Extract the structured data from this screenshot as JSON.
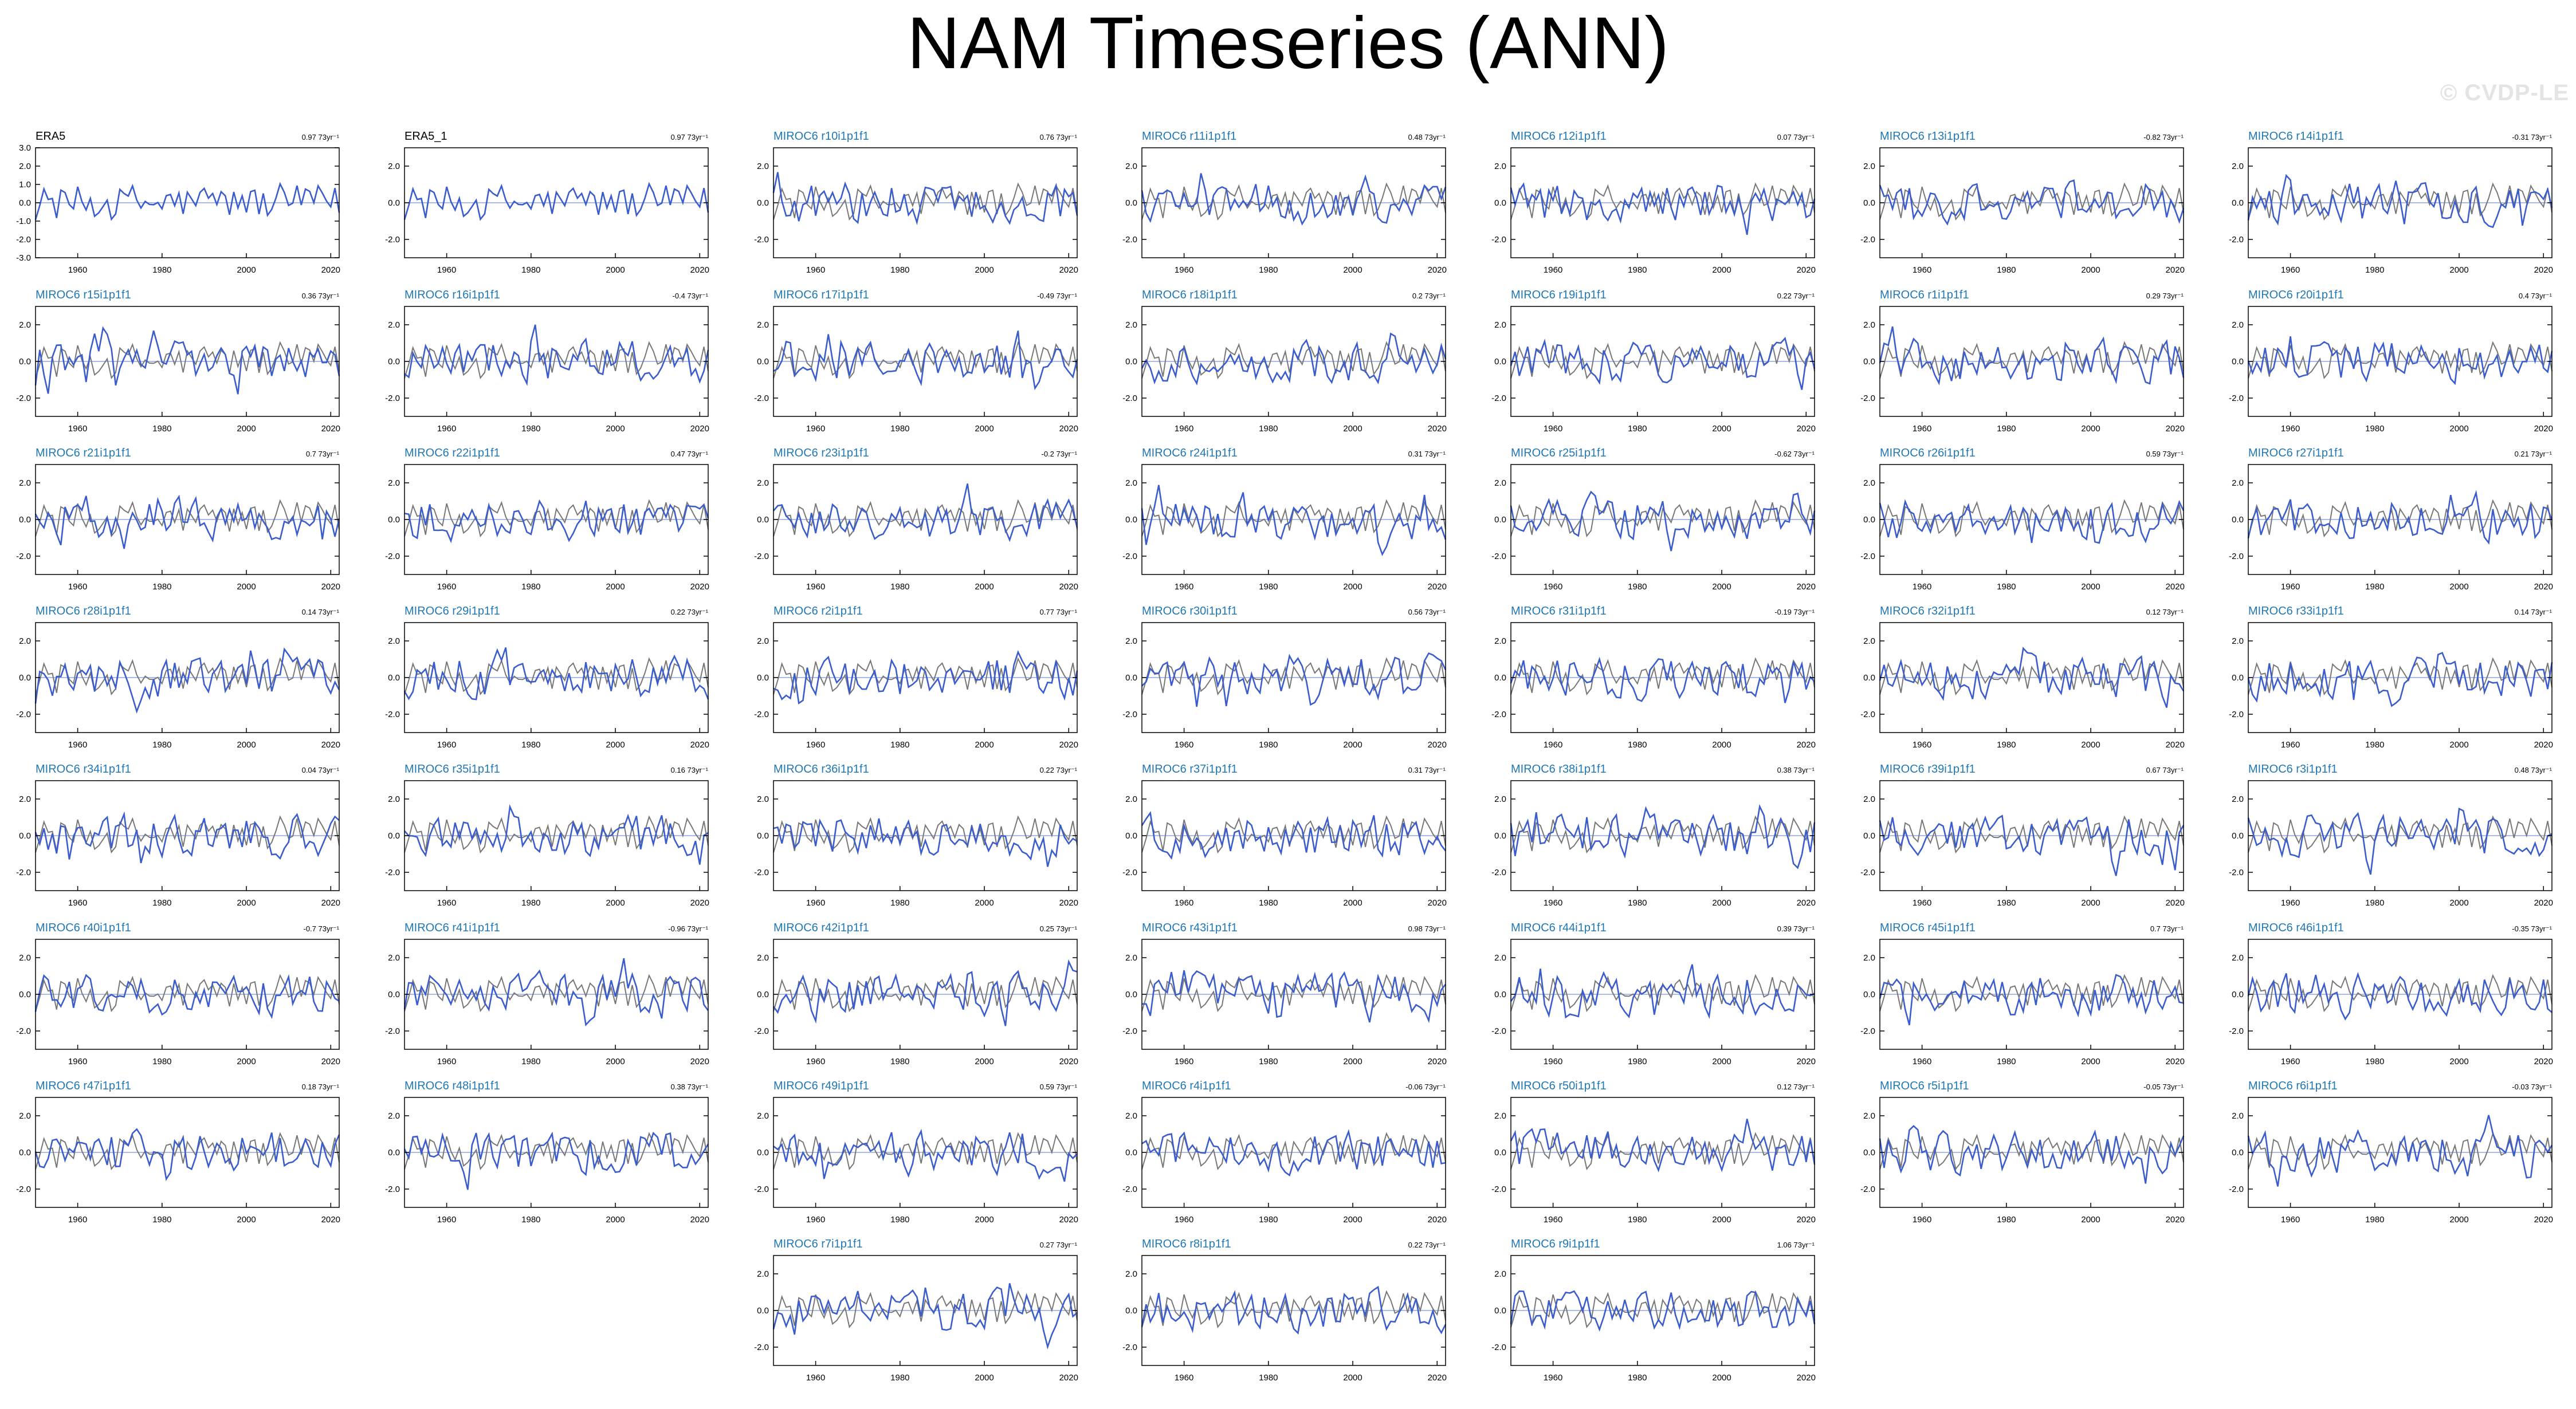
{
  "title": "NAM Timeseries (ANN)",
  "watermark": "© CVDP-LE",
  "colors": {
    "observed_line": "#777777",
    "member_line": "#3b5ccc",
    "zero_line": "#8da4e6",
    "axis": "#000000",
    "member_label": "#1f77b4",
    "obs_label": "#000000"
  },
  "chart_data": {
    "type": "line",
    "x_range": [
      1950,
      2022
    ],
    "x_ticks": [
      "1960",
      "1980",
      "2000",
      "2020"
    ],
    "panels": [
      {
        "label": "ERA5",
        "trend": "0.97",
        "is_obs": true,
        "y_ticks": [
          "3.0",
          "2.0",
          "1.0",
          "0.0",
          "-1.0",
          "-2.0",
          "-3.0"
        ],
        "ylim": [
          -3,
          3
        ]
      },
      {
        "label": "ERA5_1",
        "trend": "0.97",
        "is_obs": true,
        "y_ticks": [
          "2.0",
          "0.0",
          "-2.0"
        ],
        "ylim": [
          -3,
          3
        ]
      },
      {
        "label": "MIROC6 r10i1p1f1",
        "trend": "0.76",
        "y_ticks": [
          "2.0",
          "0.0",
          "-2.0"
        ],
        "ylim": [
          -3,
          3
        ]
      },
      {
        "label": "MIROC6 r11i1p1f1",
        "trend": "0.48",
        "y_ticks": [
          "2.0",
          "0.0",
          "-2.0"
        ],
        "ylim": [
          -3,
          3
        ]
      },
      {
        "label": "MIROC6 r12i1p1f1",
        "trend": "0.07",
        "y_ticks": [
          "2.0",
          "0.0",
          "-2.0"
        ],
        "ylim": [
          -3,
          3
        ]
      },
      {
        "label": "MIROC6 r13i1p1f1",
        "trend": "-0.82",
        "y_ticks": [
          "2.0",
          "0.0",
          "-2.0"
        ],
        "ylim": [
          -3,
          3
        ]
      },
      {
        "label": "MIROC6 r14i1p1f1",
        "trend": "-0.31",
        "y_ticks": [
          "2.0",
          "0.0",
          "-2.0"
        ],
        "ylim": [
          -3,
          3
        ]
      },
      {
        "label": "MIROC6 r15i1p1f1",
        "trend": "0.36",
        "y_ticks": [
          "2.0",
          "0.0",
          "-2.0"
        ],
        "ylim": [
          -3,
          3
        ]
      },
      {
        "label": "MIROC6 r16i1p1f1",
        "trend": "-0.4",
        "y_ticks": [
          "2.0",
          "0.0",
          "-2.0"
        ],
        "ylim": [
          -3,
          3
        ]
      },
      {
        "label": "MIROC6 r17i1p1f1",
        "trend": "-0.49",
        "y_ticks": [
          "2.0",
          "0.0",
          "-2.0"
        ],
        "ylim": [
          -3,
          3
        ]
      },
      {
        "label": "MIROC6 r18i1p1f1",
        "trend": "0.2",
        "y_ticks": [
          "2.0",
          "0.0",
          "-2.0"
        ],
        "ylim": [
          -3,
          3
        ]
      },
      {
        "label": "MIROC6 r19i1p1f1",
        "trend": "0.22",
        "y_ticks": [
          "2.0",
          "0.0",
          "-2.0"
        ],
        "ylim": [
          -3,
          3
        ]
      },
      {
        "label": "MIROC6 r1i1p1f1",
        "trend": "0.29",
        "y_ticks": [
          "2.0",
          "0.0",
          "-2.0"
        ],
        "ylim": [
          -3,
          3
        ]
      },
      {
        "label": "MIROC6 r20i1p1f1",
        "trend": "0.4",
        "y_ticks": [
          "2.0",
          "0.0",
          "-2.0"
        ],
        "ylim": [
          -3,
          3
        ]
      },
      {
        "label": "MIROC6 r21i1p1f1",
        "trend": "0.7",
        "y_ticks": [
          "2.0",
          "0.0",
          "-2.0"
        ],
        "ylim": [
          -3,
          3
        ]
      },
      {
        "label": "MIROC6 r22i1p1f1",
        "trend": "0.47",
        "y_ticks": [
          "2.0",
          "0.0",
          "-2.0"
        ],
        "ylim": [
          -3,
          3
        ]
      },
      {
        "label": "MIROC6 r23i1p1f1",
        "trend": "-0.2",
        "y_ticks": [
          "2.0",
          "0.0",
          "-2.0"
        ],
        "ylim": [
          -3,
          3
        ]
      },
      {
        "label": "MIROC6 r24i1p1f1",
        "trend": "0.31",
        "y_ticks": [
          "2.0",
          "0.0",
          "-2.0"
        ],
        "ylim": [
          -3,
          3
        ]
      },
      {
        "label": "MIROC6 r25i1p1f1",
        "trend": "-0.62",
        "y_ticks": [
          "2.0",
          "0.0",
          "-2.0"
        ],
        "ylim": [
          -3,
          3
        ]
      },
      {
        "label": "MIROC6 r26i1p1f1",
        "trend": "0.59",
        "y_ticks": [
          "2.0",
          "0.0",
          "-2.0"
        ],
        "ylim": [
          -3,
          3
        ]
      },
      {
        "label": "MIROC6 r27i1p1f1",
        "trend": "0.21",
        "y_ticks": [
          "2.0",
          "0.0",
          "-2.0"
        ],
        "ylim": [
          -3,
          3
        ]
      },
      {
        "label": "MIROC6 r28i1p1f1",
        "trend": "0.14",
        "y_ticks": [
          "2.0",
          "0.0",
          "-2.0"
        ],
        "ylim": [
          -3,
          3
        ]
      },
      {
        "label": "MIROC6 r29i1p1f1",
        "trend": "0.22",
        "y_ticks": [
          "2.0",
          "0.0",
          "-2.0"
        ],
        "ylim": [
          -3,
          3
        ]
      },
      {
        "label": "MIROC6 r2i1p1f1",
        "trend": "0.77",
        "y_ticks": [
          "2.0",
          "0.0",
          "-2.0"
        ],
        "ylim": [
          -3,
          3
        ]
      },
      {
        "label": "MIROC6 r30i1p1f1",
        "trend": "0.56",
        "y_ticks": [
          "2.0",
          "0.0",
          "-2.0"
        ],
        "ylim": [
          -3,
          3
        ]
      },
      {
        "label": "MIROC6 r31i1p1f1",
        "trend": "-0.19",
        "y_ticks": [
          "2.0",
          "0.0",
          "-2.0"
        ],
        "ylim": [
          -3,
          3
        ]
      },
      {
        "label": "MIROC6 r32i1p1f1",
        "trend": "0.12",
        "y_ticks": [
          "2.0",
          "0.0",
          "-2.0"
        ],
        "ylim": [
          -3,
          3
        ]
      },
      {
        "label": "MIROC6 r33i1p1f1",
        "trend": "0.14",
        "y_ticks": [
          "2.0",
          "0.0",
          "-2.0"
        ],
        "ylim": [
          -3,
          3
        ]
      },
      {
        "label": "MIROC6 r34i1p1f1",
        "trend": "0.04",
        "y_ticks": [
          "2.0",
          "0.0",
          "-2.0"
        ],
        "ylim": [
          -3,
          3
        ]
      },
      {
        "label": "MIROC6 r35i1p1f1",
        "trend": "0.16",
        "y_ticks": [
          "2.0",
          "0.0",
          "-2.0"
        ],
        "ylim": [
          -3,
          3
        ]
      },
      {
        "label": "MIROC6 r36i1p1f1",
        "trend": "0.22",
        "y_ticks": [
          "2.0",
          "0.0",
          "-2.0"
        ],
        "ylim": [
          -3,
          3
        ]
      },
      {
        "label": "MIROC6 r37i1p1f1",
        "trend": "0.31",
        "y_ticks": [
          "2.0",
          "0.0",
          "-2.0"
        ],
        "ylim": [
          -3,
          3
        ]
      },
      {
        "label": "MIROC6 r38i1p1f1",
        "trend": "0.38",
        "y_ticks": [
          "2.0",
          "0.0",
          "-2.0"
        ],
        "ylim": [
          -3,
          3
        ]
      },
      {
        "label": "MIROC6 r39i1p1f1",
        "trend": "0.67",
        "y_ticks": [
          "2.0",
          "0.0",
          "-2.0"
        ],
        "ylim": [
          -3,
          3
        ]
      },
      {
        "label": "MIROC6 r3i1p1f1",
        "trend": "0.48",
        "y_ticks": [
          "2.0",
          "0.0",
          "-2.0"
        ],
        "ylim": [
          -3,
          3
        ]
      },
      {
        "label": "MIROC6 r40i1p1f1",
        "trend": "-0.7",
        "y_ticks": [
          "2.0",
          "0.0",
          "-2.0"
        ],
        "ylim": [
          -3,
          3
        ]
      },
      {
        "label": "MIROC6 r41i1p1f1",
        "trend": "-0.96",
        "y_ticks": [
          "2.0",
          "0.0",
          "-2.0"
        ],
        "ylim": [
          -3,
          3
        ]
      },
      {
        "label": "MIROC6 r42i1p1f1",
        "trend": "0.25",
        "y_ticks": [
          "2.0",
          "0.0",
          "-2.0"
        ],
        "ylim": [
          -3,
          3
        ]
      },
      {
        "label": "MIROC6 r43i1p1f1",
        "trend": "0.98",
        "y_ticks": [
          "2.0",
          "0.0",
          "-2.0"
        ],
        "ylim": [
          -3,
          3
        ]
      },
      {
        "label": "MIROC6 r44i1p1f1",
        "trend": "0.39",
        "y_ticks": [
          "2.0",
          "0.0",
          "-2.0"
        ],
        "ylim": [
          -3,
          3
        ]
      },
      {
        "label": "MIROC6 r45i1p1f1",
        "trend": "0.7",
        "y_ticks": [
          "2.0",
          "0.0",
          "-2.0"
        ],
        "ylim": [
          -3,
          3
        ]
      },
      {
        "label": "MIROC6 r46i1p1f1",
        "trend": "-0.35",
        "y_ticks": [
          "2.0",
          "0.0",
          "-2.0"
        ],
        "ylim": [
          -3,
          3
        ]
      },
      {
        "label": "MIROC6 r47i1p1f1",
        "trend": "0.18",
        "y_ticks": [
          "2.0",
          "0.0",
          "-2.0"
        ],
        "ylim": [
          -3,
          3
        ]
      },
      {
        "label": "MIROC6 r48i1p1f1",
        "trend": "0.38",
        "y_ticks": [
          "2.0",
          "0.0",
          "-2.0"
        ],
        "ylim": [
          -3,
          3
        ]
      },
      {
        "label": "MIROC6 r49i1p1f1",
        "trend": "0.59",
        "y_ticks": [
          "2.0",
          "0.0",
          "-2.0"
        ],
        "ylim": [
          -3,
          3
        ]
      },
      {
        "label": "MIROC6 r4i1p1f1",
        "trend": "-0.06",
        "y_ticks": [
          "2.0",
          "0.0",
          "-2.0"
        ],
        "ylim": [
          -3,
          3
        ]
      },
      {
        "label": "MIROC6 r50i1p1f1",
        "trend": "0.12",
        "y_ticks": [
          "2.0",
          "0.0",
          "-2.0"
        ],
        "ylim": [
          -3,
          3
        ]
      },
      {
        "label": "MIROC6 r5i1p1f1",
        "trend": "-0.05",
        "y_ticks": [
          "2.0",
          "0.0",
          "-2.0"
        ],
        "ylim": [
          -3,
          3
        ]
      },
      {
        "label": "MIROC6 r6i1p1f1",
        "trend": "-0.03",
        "y_ticks": [
          "2.0",
          "0.0",
          "-2.0"
        ],
        "ylim": [
          -3,
          3
        ]
      },
      {
        "label": "MIROC6 r7i1p1f1",
        "trend": "0.27",
        "y_ticks": [
          "2.0",
          "0.0",
          "-2.0"
        ],
        "ylim": [
          -3,
          3
        ]
      },
      {
        "label": "MIROC6 r8i1p1f1",
        "trend": "0.22",
        "y_ticks": [
          "2.0",
          "0.0",
          "-2.0"
        ],
        "ylim": [
          -3,
          3
        ]
      },
      {
        "label": "MIROC6 r9i1p1f1",
        "trend": "1.06",
        "y_ticks": [
          "2.0",
          "0.0",
          "-2.0"
        ],
        "ylim": [
          -3,
          3
        ]
      }
    ]
  }
}
